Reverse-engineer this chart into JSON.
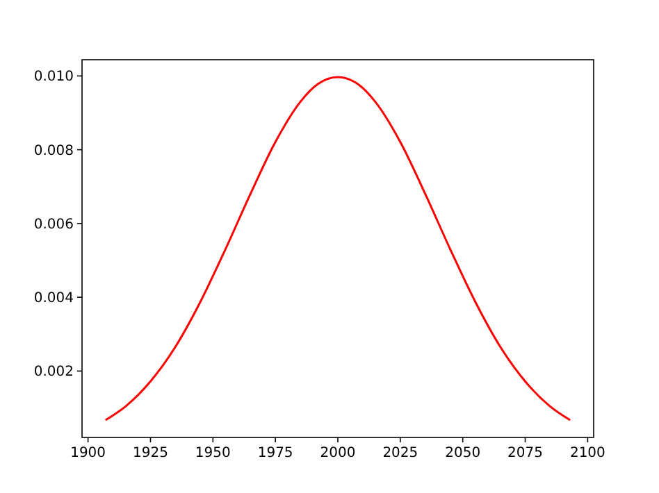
{
  "chart_data": {
    "type": "line",
    "x": [
      1907,
      1915,
      1925,
      1935,
      1945,
      1955,
      1965,
      1975,
      1985,
      1992,
      2000,
      2008,
      2015,
      2025,
      2035,
      2045,
      2055,
      2065,
      2075,
      2085,
      2093
    ],
    "series": [
      {
        "color": "#ff0000",
        "values": [
          0.00067,
          0.00104,
          0.00172,
          0.00266,
          0.00388,
          0.0053,
          0.0068,
          0.00821,
          0.0093,
          0.00978,
          0.00997,
          0.00978,
          0.0093,
          0.00821,
          0.0068,
          0.0053,
          0.00388,
          0.00266,
          0.00172,
          0.00104,
          0.00067
        ]
      }
    ],
    "xlim": [
      1897.6,
      2102.4
    ],
    "xticks": [
      1900,
      1925,
      1950,
      1975,
      2000,
      2025,
      2050,
      2075,
      2100
    ],
    "ylim": [
      0.0002,
      0.01044
    ],
    "yticks": [
      {
        "value": 0.002,
        "label": "0.002"
      },
      {
        "value": 0.004,
        "label": "0.004"
      },
      {
        "value": 0.006,
        "label": "0.006"
      },
      {
        "value": 0.008,
        "label": "0.008"
      },
      {
        "value": 0.01,
        "label": "0.010"
      }
    ],
    "grid": false,
    "marker": "none",
    "line_style": "solid"
  }
}
